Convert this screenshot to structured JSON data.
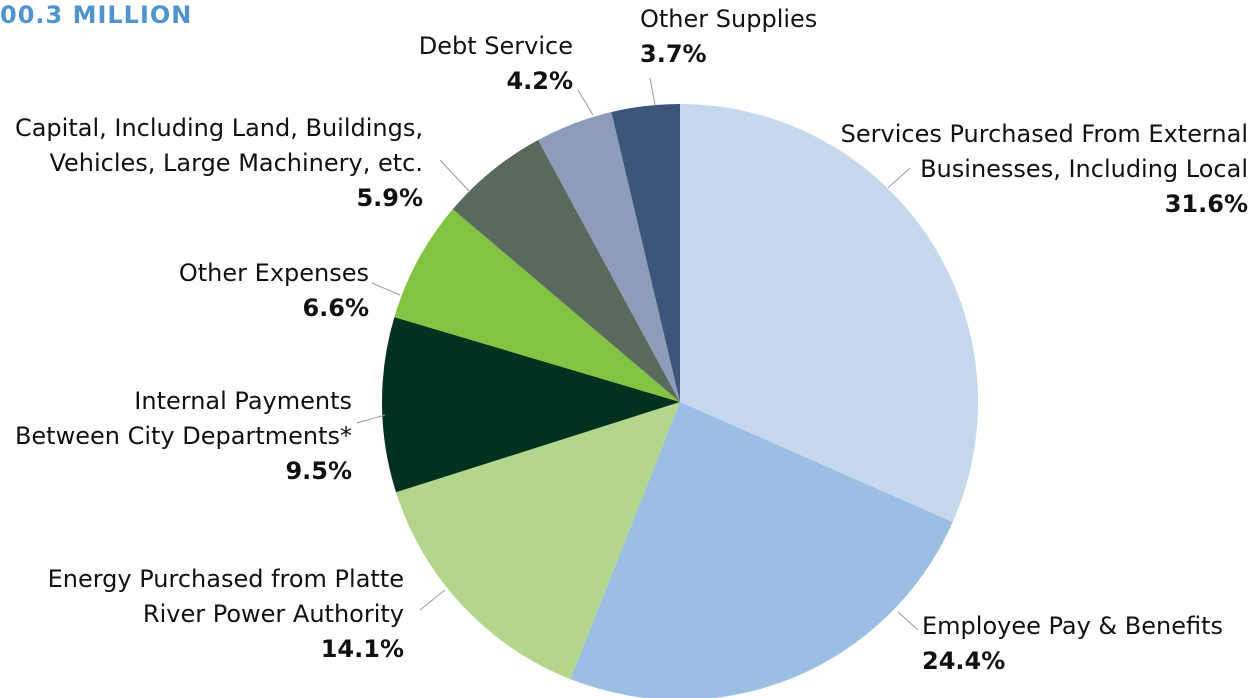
{
  "chart_data": {
    "type": "pie",
    "title": "00.3 MILLION",
    "categories": [
      [
        "Services Purchased From External",
        "Businesses, Including Local"
      ],
      [
        "Employee Pay & Benefits"
      ],
      [
        "Energy Purchased from Platte",
        "River Power Authority"
      ],
      [
        "Internal Payments",
        "Between City Departments*"
      ],
      [
        "Other Expenses"
      ],
      [
        "Capital, Including Land, Buildings,",
        "Vehicles, Large Machinery, etc."
      ],
      [
        "Debt Service"
      ],
      [
        "Other Supplies"
      ]
    ],
    "values": [
      31.6,
      24.4,
      14.1,
      9.5,
      6.6,
      5.9,
      4.2,
      3.7
    ],
    "value_labels": [
      "31.6%",
      "24.4%",
      "14.1%",
      "9.5%",
      "6.6%",
      "5.9%",
      "4.2%",
      "3.7%"
    ],
    "colors": [
      "#c5d8ee",
      "#9bbfe3",
      "#b2d68c",
      "#03311f",
      "#82c341",
      "#59695c",
      "#8c9cb9",
      "#3d5578"
    ]
  }
}
